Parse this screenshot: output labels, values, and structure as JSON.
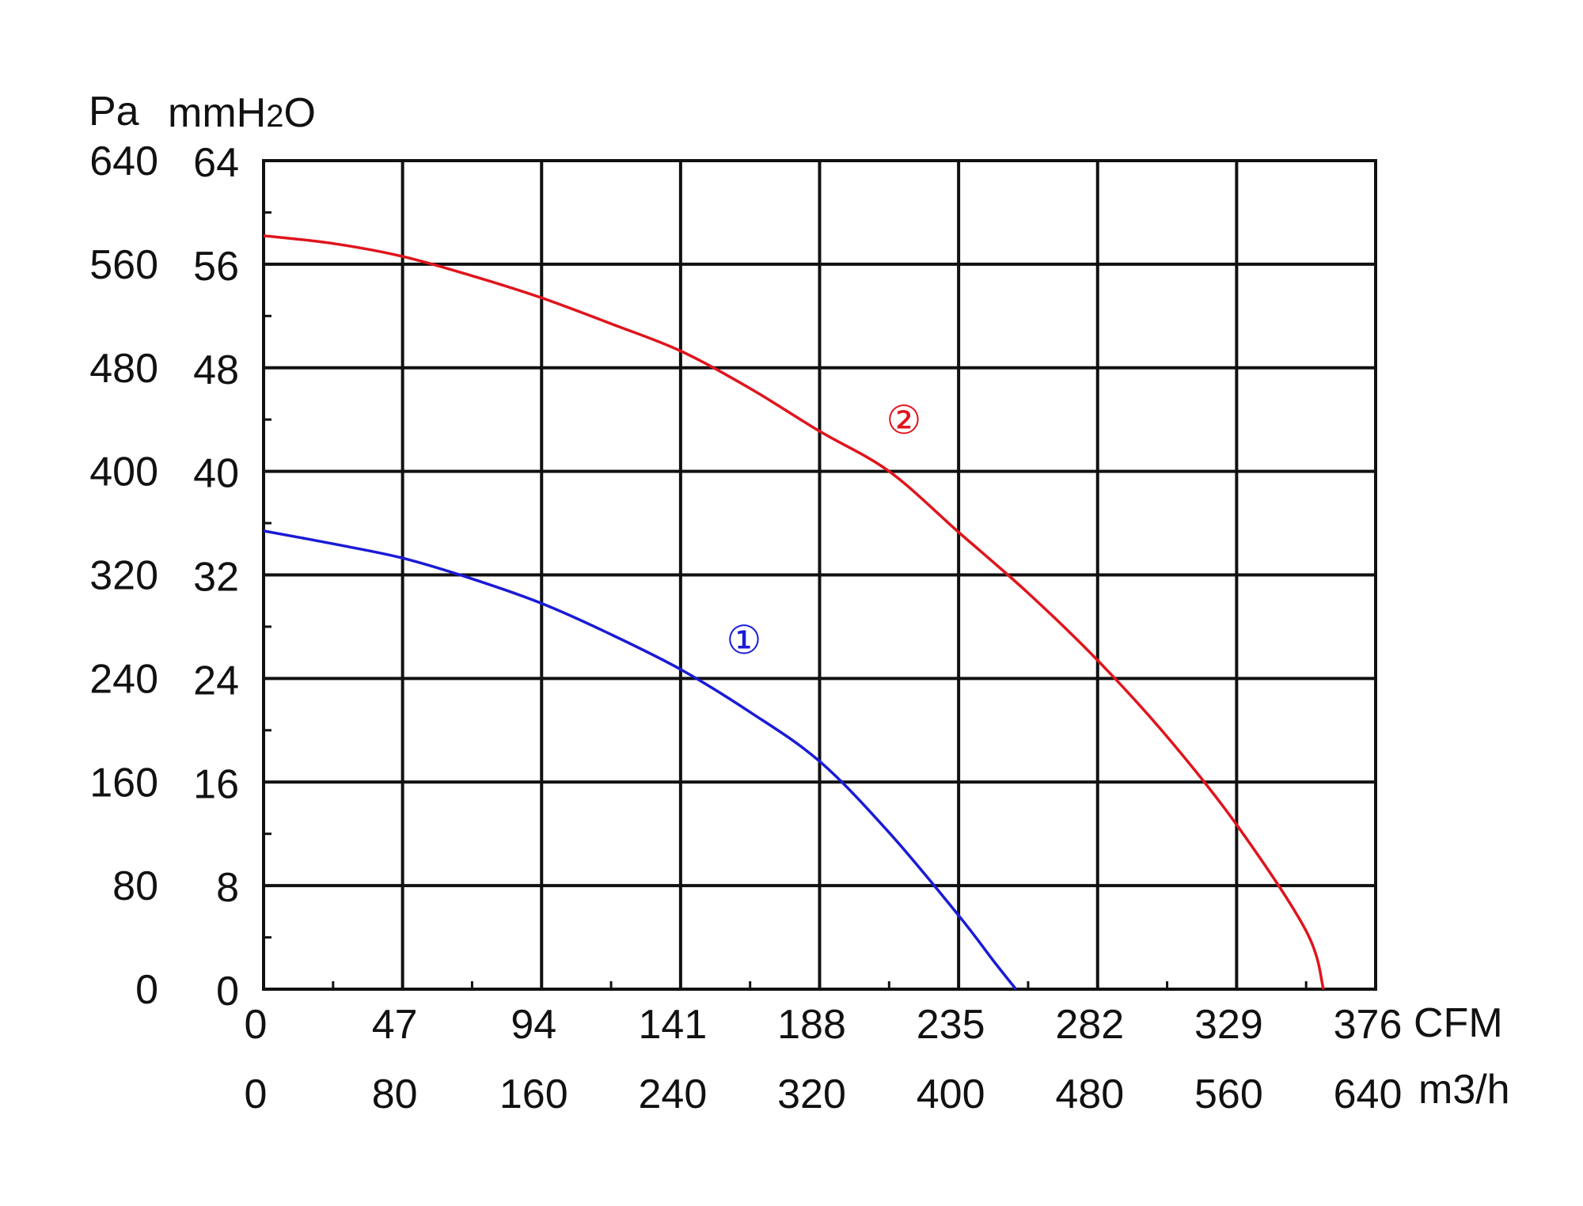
{
  "chart_data": {
    "type": "line",
    "title": "",
    "y_units": [
      "Pa",
      "mmH2O"
    ],
    "y_unit_pa": "Pa",
    "y_unit_mm_base": "mmH",
    "y_unit_mm_sub": "2",
    "y_unit_mm_tail": "O",
    "x_unit_cfm": "CFM",
    "x_unit_m3h": "m3/h",
    "yticks_pa": [
      "640",
      "560",
      "480",
      "400",
      "320",
      "240",
      "160",
      "80",
      "0"
    ],
    "yticks_mm": [
      "64",
      "56",
      "48",
      "40",
      "32",
      "24",
      "16",
      "8",
      "0"
    ],
    "xticks_cfm": [
      "0",
      "47",
      "94",
      "141",
      "188",
      "235",
      "282",
      "329",
      "376"
    ],
    "xticks_m3h": [
      "0",
      "80",
      "160",
      "240",
      "320",
      "400",
      "480",
      "560",
      "640"
    ],
    "xlim_m3h": [
      0,
      640
    ],
    "ylim_pa": [
      0,
      640
    ],
    "grid": true,
    "series": [
      {
        "name": "①",
        "color": "#1a1ad6",
        "x": [
          0,
          40,
          80,
          120,
          160,
          200,
          240,
          280,
          320,
          360,
          400,
          420,
          433
        ],
        "y": [
          354,
          344,
          333,
          317,
          298,
          274,
          247,
          214,
          176,
          121,
          57,
          22,
          0
        ]
      },
      {
        "name": "②",
        "color": "#e0141c",
        "x": [
          0,
          40,
          80,
          120,
          160,
          200,
          240,
          280,
          320,
          360,
          400,
          440,
          480,
          520,
          560,
          600,
          610
        ],
        "y": [
          582,
          576,
          566,
          551,
          534,
          514,
          493,
          464,
          431,
          400,
          353,
          306,
          254,
          195,
          127,
          45,
          0
        ]
      }
    ]
  }
}
